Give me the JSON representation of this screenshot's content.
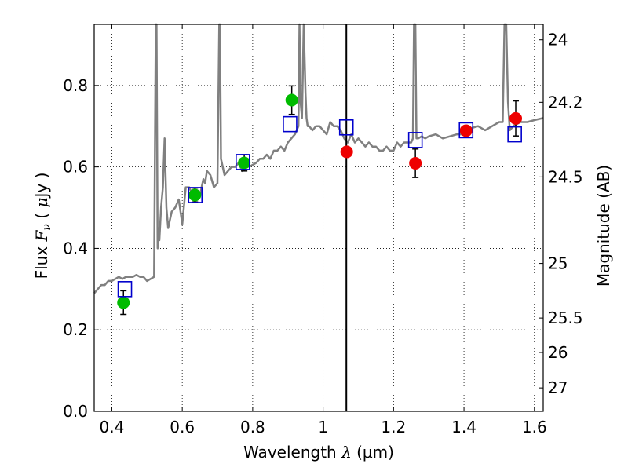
{
  "chart_data": {
    "type": "scatter",
    "xlabel": "Wavelength  λ (μm)",
    "xlabel_parts": {
      "pre": "Wavelength  ",
      "sym": "λ",
      "post": " (μm)"
    },
    "ylabel": "Flux  Fν  ( μJy )",
    "ylabel_parts": {
      "pre": "Flux  ",
      "sym": "F",
      "sub": "ν",
      "mid": "  ( ",
      "mu": "μ",
      "post": "Jy )"
    },
    "y2label": "Magnitude (AB)",
    "xlim": [
      0.35,
      1.625
    ],
    "ylim": [
      0.0,
      0.95
    ],
    "grid": true,
    "x_ticks": [
      0.4,
      0.6,
      0.8,
      1.0,
      1.2,
      1.4,
      1.6
    ],
    "x_tick_labels": [
      "0.4",
      "0.6",
      "0.8",
      "1",
      "1.2",
      "1.4",
      "1.6"
    ],
    "y_ticks": [
      0.0,
      0.2,
      0.4,
      0.6,
      0.8
    ],
    "y_tick_labels": [
      "0.0",
      "0.2",
      "0.4",
      "0.6",
      "0.8"
    ],
    "mag_ticks": [
      24,
      24.2,
      24.5,
      25,
      25.5,
      26,
      27
    ],
    "mag_tick_labels": [
      "24",
      "24.2",
      "24.5",
      "25",
      "25.5",
      "26",
      "27"
    ],
    "vertical_line_x": 1.066,
    "colors": {
      "sed": "#808080",
      "model_box": "#0000cc",
      "optical": "#00bb00",
      "nir": "#ee0000",
      "vline": "#000000"
    },
    "model_sed": {
      "name": "",
      "x": [
        0.35,
        0.36,
        0.37,
        0.38,
        0.39,
        0.4,
        0.41,
        0.42,
        0.43,
        0.44,
        0.45,
        0.46,
        0.47,
        0.48,
        0.49,
        0.5,
        0.51,
        0.52,
        0.525,
        0.527,
        0.53,
        0.532,
        0.535,
        0.54,
        0.545,
        0.55,
        0.555,
        0.56,
        0.57,
        0.58,
        0.59,
        0.6,
        0.61,
        0.62,
        0.63,
        0.64,
        0.65,
        0.655,
        0.66,
        0.665,
        0.67,
        0.68,
        0.69,
        0.7,
        0.705,
        0.707,
        0.71,
        0.72,
        0.73,
        0.74,
        0.75,
        0.76,
        0.77,
        0.78,
        0.79,
        0.8,
        0.81,
        0.82,
        0.83,
        0.84,
        0.85,
        0.86,
        0.87,
        0.88,
        0.89,
        0.9,
        0.91,
        0.92,
        0.93,
        0.933,
        0.936,
        0.94,
        0.945,
        0.95,
        0.953,
        0.956,
        0.96,
        0.97,
        0.98,
        0.99,
        1.0,
        1.01,
        1.02,
        1.03,
        1.04,
        1.05,
        1.06,
        1.07,
        1.08,
        1.09,
        1.1,
        1.11,
        1.12,
        1.13,
        1.14,
        1.15,
        1.16,
        1.17,
        1.18,
        1.19,
        1.2,
        1.21,
        1.22,
        1.23,
        1.24,
        1.25,
        1.255,
        1.258,
        1.262,
        1.265,
        1.27,
        1.28,
        1.29,
        1.3,
        1.32,
        1.34,
        1.36,
        1.38,
        1.4,
        1.41,
        1.42,
        1.44,
        1.46,
        1.48,
        1.5,
        1.51,
        1.515,
        1.52,
        1.525,
        1.53,
        1.54,
        1.56,
        1.58,
        1.6,
        1.625
      ],
      "y": [
        0.29,
        0.3,
        0.31,
        0.31,
        0.32,
        0.32,
        0.325,
        0.33,
        0.325,
        0.33,
        0.33,
        0.33,
        0.335,
        0.33,
        0.33,
        0.32,
        0.325,
        0.33,
        0.95,
        0.95,
        0.4,
        0.45,
        0.42,
        0.5,
        0.55,
        0.67,
        0.5,
        0.45,
        0.49,
        0.5,
        0.52,
        0.46,
        0.55,
        0.55,
        0.53,
        0.52,
        0.53,
        0.55,
        0.57,
        0.56,
        0.59,
        0.58,
        0.55,
        0.56,
        0.95,
        0.95,
        0.62,
        0.58,
        0.59,
        0.6,
        0.6,
        0.61,
        0.59,
        0.61,
        0.6,
        0.605,
        0.61,
        0.62,
        0.62,
        0.63,
        0.62,
        0.64,
        0.64,
        0.65,
        0.64,
        0.66,
        0.67,
        0.68,
        0.7,
        0.95,
        0.76,
        0.72,
        0.95,
        0.78,
        0.72,
        0.7,
        0.7,
        0.69,
        0.7,
        0.7,
        0.69,
        0.68,
        0.71,
        0.7,
        0.7,
        0.69,
        0.67,
        0.66,
        0.68,
        0.66,
        0.67,
        0.66,
        0.65,
        0.66,
        0.65,
        0.65,
        0.64,
        0.64,
        0.65,
        0.64,
        0.64,
        0.66,
        0.65,
        0.66,
        0.66,
        0.66,
        0.67,
        0.95,
        0.95,
        0.67,
        0.67,
        0.675,
        0.67,
        0.675,
        0.68,
        0.67,
        0.675,
        0.68,
        0.68,
        0.69,
        0.695,
        0.7,
        0.69,
        0.7,
        0.71,
        0.71,
        0.95,
        0.95,
        0.76,
        0.69,
        0.7,
        0.71,
        0.71,
        0.715,
        0.72
      ]
    },
    "synthetic_photometry": {
      "name": "",
      "x": [
        0.437,
        0.637,
        0.772,
        0.906,
        1.066,
        1.262,
        1.406,
        1.544
      ],
      "y": [
        0.3,
        0.531,
        0.612,
        0.705,
        0.697,
        0.666,
        0.69,
        0.68
      ]
    },
    "optical_photometry": {
      "name": "",
      "x": [
        0.433,
        0.636,
        0.776,
        0.911
      ],
      "y": [
        0.267,
        0.531,
        0.61,
        0.764
      ],
      "err": [
        0.029,
        0.017,
        0.02,
        0.035
      ]
    },
    "nir_photometry": {
      "name": "",
      "x": [
        1.067,
        1.262,
        1.406,
        1.547
      ],
      "y": [
        0.637,
        0.609,
        0.689,
        0.719
      ],
      "err": [
        0.0,
        0.035,
        0.0,
        0.043
      ]
    }
  }
}
